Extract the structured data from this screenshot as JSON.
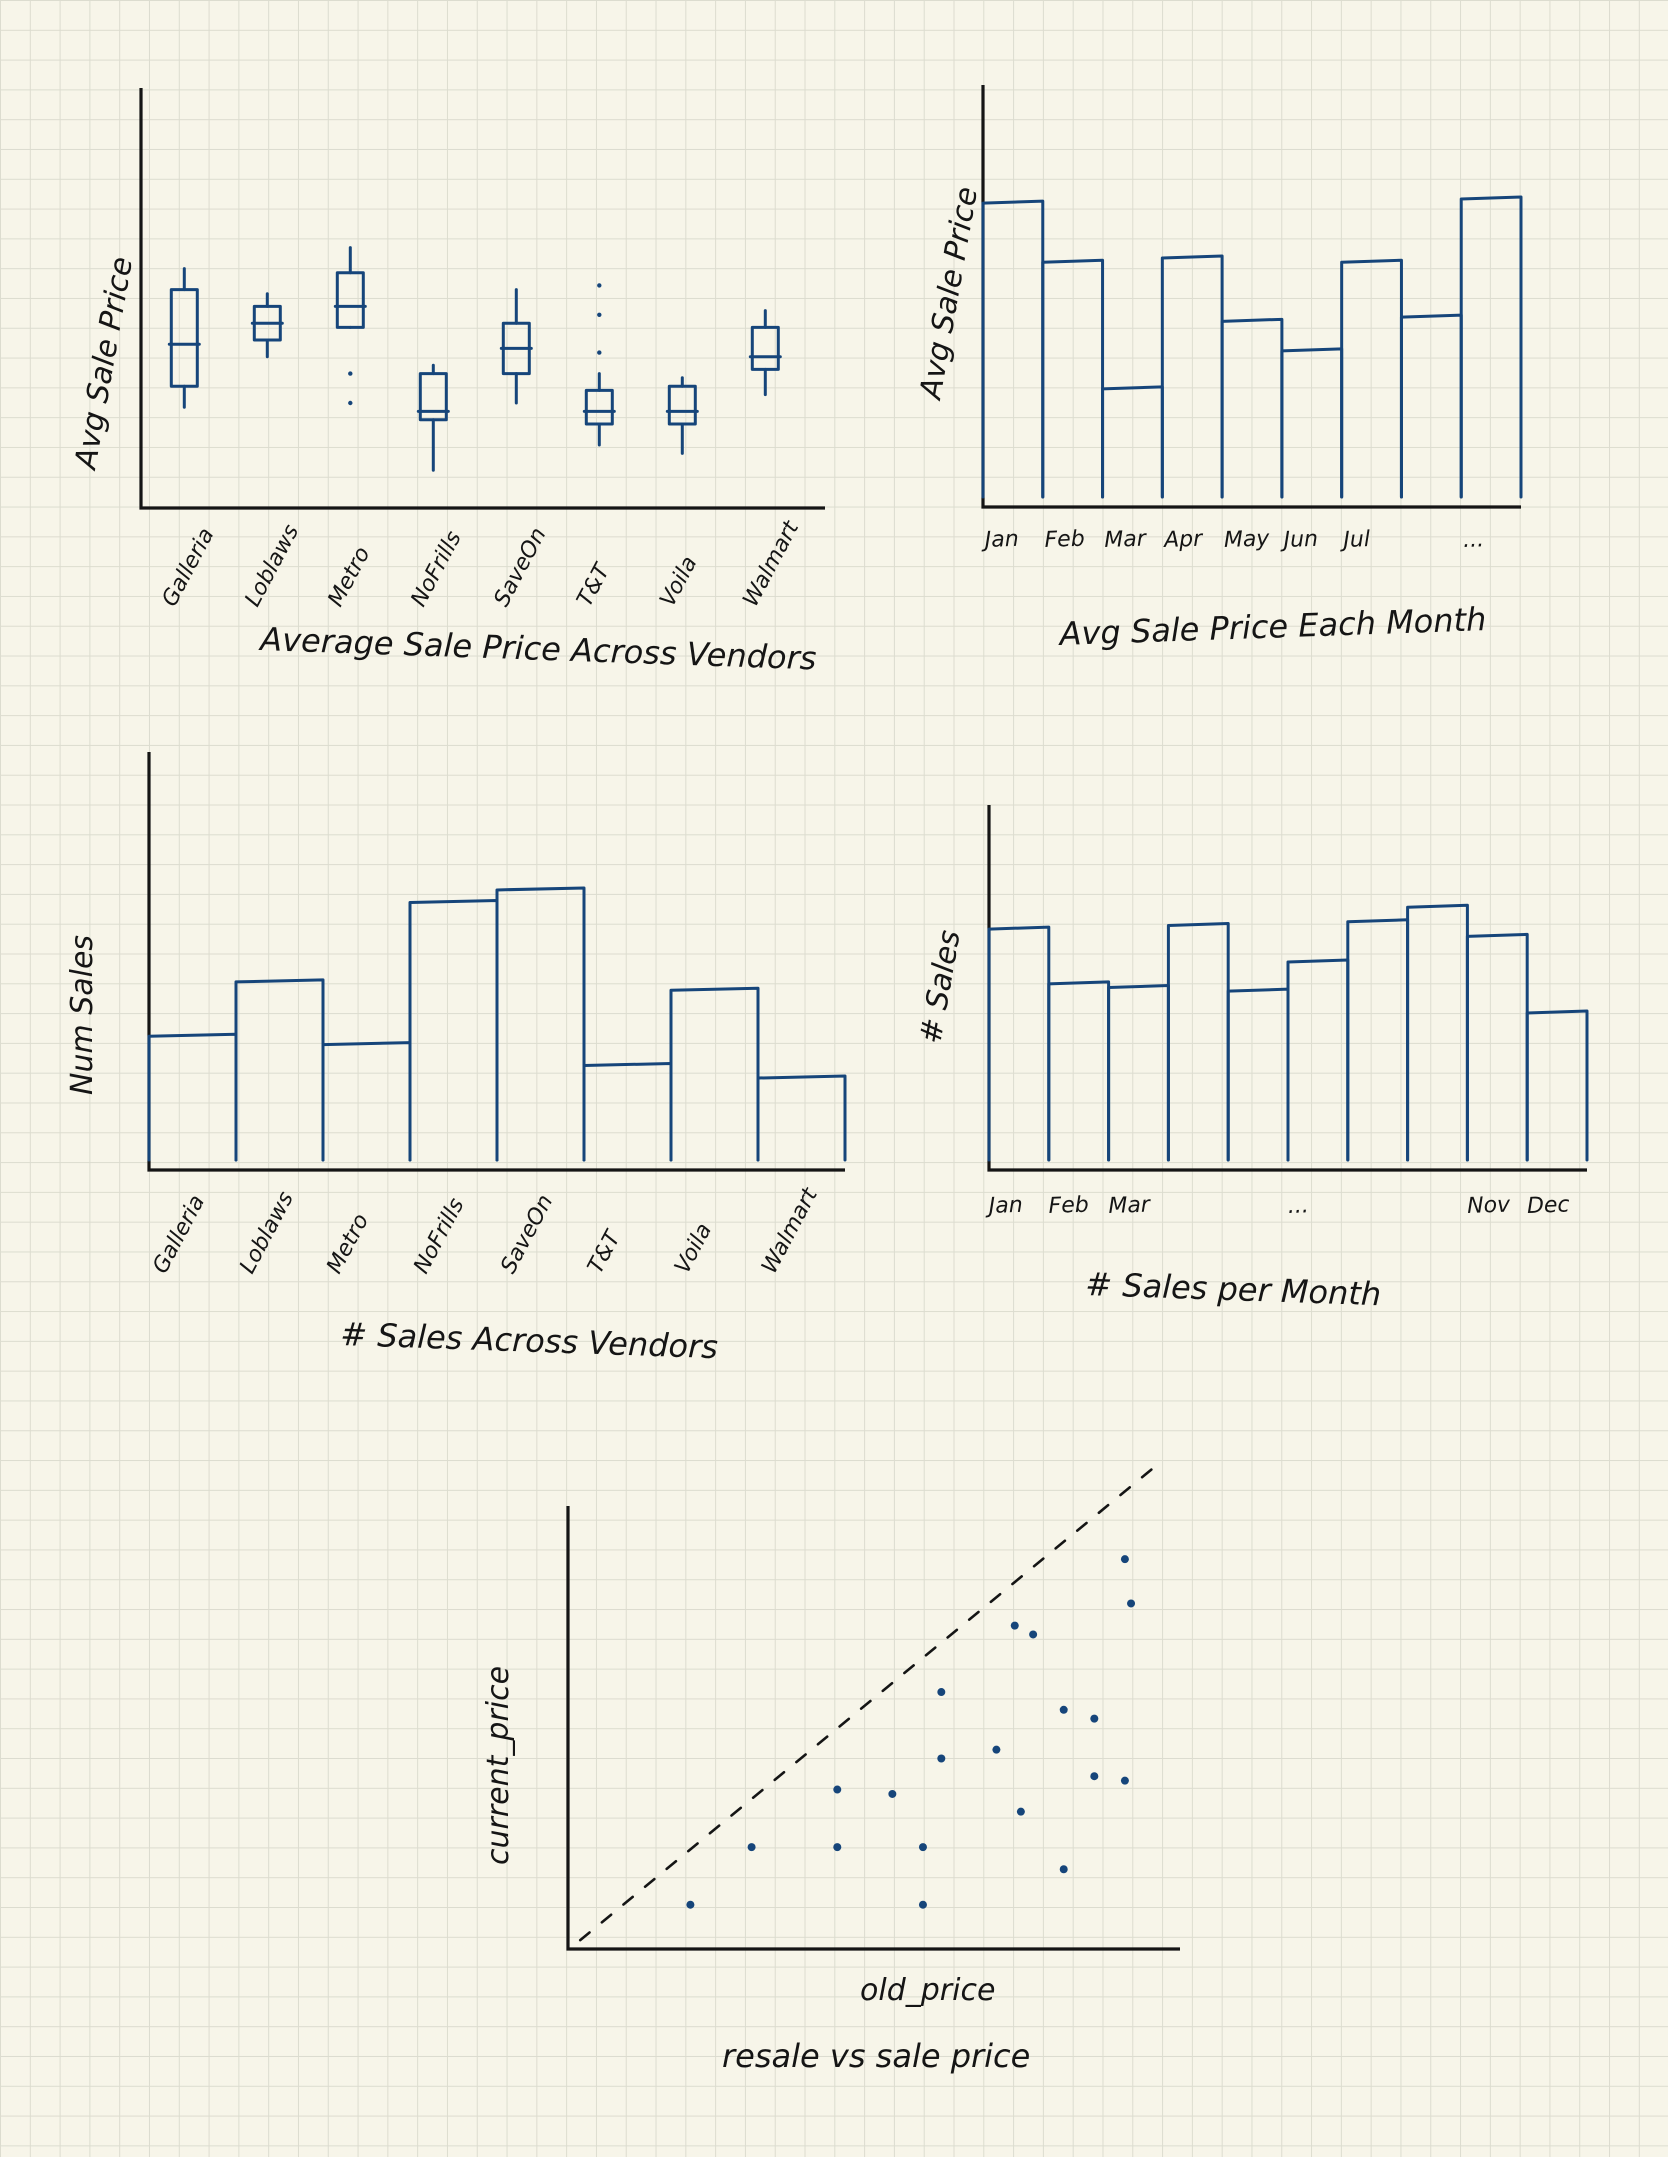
{
  "chart_data": [
    {
      "type": "box",
      "title": "Average Sale Price Across Vendors",
      "ylabel": "Avg Sale Price",
      "categories": [
        "Galleria",
        "Loblaws",
        "Metro",
        "NoFrills",
        "SaveOn",
        "T&T",
        "Voila",
        "Walmart"
      ],
      "boxes": [
        {
          "whisker_low": 0.24,
          "q1": 0.29,
          "median": 0.39,
          "q3": 0.52,
          "whisker_high": 0.57,
          "outliers": []
        },
        {
          "whisker_low": 0.36,
          "q1": 0.4,
          "median": 0.44,
          "q3": 0.48,
          "whisker_high": 0.51,
          "outliers": []
        },
        {
          "whisker_low": 0.43,
          "q1": 0.43,
          "median": 0.48,
          "q3": 0.56,
          "whisker_high": 0.62,
          "outliers": [
            0.32,
            0.25
          ]
        },
        {
          "whisker_low": 0.09,
          "q1": 0.21,
          "median": 0.23,
          "q3": 0.32,
          "whisker_high": 0.34,
          "outliers": []
        },
        {
          "whisker_low": 0.25,
          "q1": 0.32,
          "median": 0.38,
          "q3": 0.44,
          "whisker_high": 0.52,
          "outliers": []
        },
        {
          "whisker_low": 0.15,
          "q1": 0.2,
          "median": 0.23,
          "q3": 0.28,
          "whisker_high": 0.32,
          "outliers": [
            0.37,
            0.46,
            0.53
          ]
        },
        {
          "whisker_low": 0.13,
          "q1": 0.2,
          "median": 0.23,
          "q3": 0.29,
          "whisker_high": 0.31,
          "outliers": []
        },
        {
          "whisker_low": 0.27,
          "q1": 0.33,
          "median": 0.36,
          "q3": 0.43,
          "whisker_high": 0.47,
          "outliers": []
        }
      ]
    },
    {
      "type": "bar",
      "title": "Avg Sale Price Each Month",
      "ylabel": "Avg Sale Price",
      "categories": [
        "Jan",
        "Feb",
        "Mar",
        "Apr",
        "May",
        "Jun",
        "Jul",
        "",
        "..."
      ],
      "values": [
        0.72,
        0.58,
        0.28,
        0.59,
        0.44,
        0.37,
        0.58,
        0.45,
        0.73
      ]
    },
    {
      "type": "bar",
      "title": "# Sales Across Vendors",
      "ylabel": "Num Sales",
      "categories": [
        "Galleria",
        "Loblaws",
        "Metro",
        "NoFrills",
        "SaveOn",
        "T&T",
        "Voila",
        "Walmart"
      ],
      "values": [
        0.32,
        0.45,
        0.3,
        0.64,
        0.67,
        0.25,
        0.43,
        0.22
      ]
    },
    {
      "type": "bar",
      "title": "# Sales per Month",
      "ylabel": "# Sales",
      "categories": [
        "Jan",
        "Feb",
        "Mar",
        "",
        "",
        "...",
        "",
        "",
        "Nov",
        "Dec"
      ],
      "values": [
        0.66,
        0.51,
        0.5,
        0.67,
        0.49,
        0.57,
        0.68,
        0.72,
        0.64,
        0.43
      ]
    },
    {
      "type": "scatter",
      "title": "resale vs sale price",
      "xlabel": "old_price",
      "ylabel": "current_price",
      "reference_line": "y = x",
      "points": [
        [
          0.2,
          0.1
        ],
        [
          0.3,
          0.23
        ],
        [
          0.44,
          0.23
        ],
        [
          0.44,
          0.36
        ],
        [
          0.53,
          0.35
        ],
        [
          0.58,
          0.1
        ],
        [
          0.58,
          0.23
        ],
        [
          0.61,
          0.43
        ],
        [
          0.61,
          0.58
        ],
        [
          0.7,
          0.45
        ],
        [
          0.73,
          0.73
        ],
        [
          0.74,
          0.31
        ],
        [
          0.76,
          0.71
        ],
        [
          0.81,
          0.18
        ],
        [
          0.81,
          0.54
        ],
        [
          0.86,
          0.39
        ],
        [
          0.86,
          0.52
        ],
        [
          0.91,
          0.38
        ],
        [
          0.91,
          0.88
        ],
        [
          0.92,
          0.78
        ]
      ]
    }
  ]
}
